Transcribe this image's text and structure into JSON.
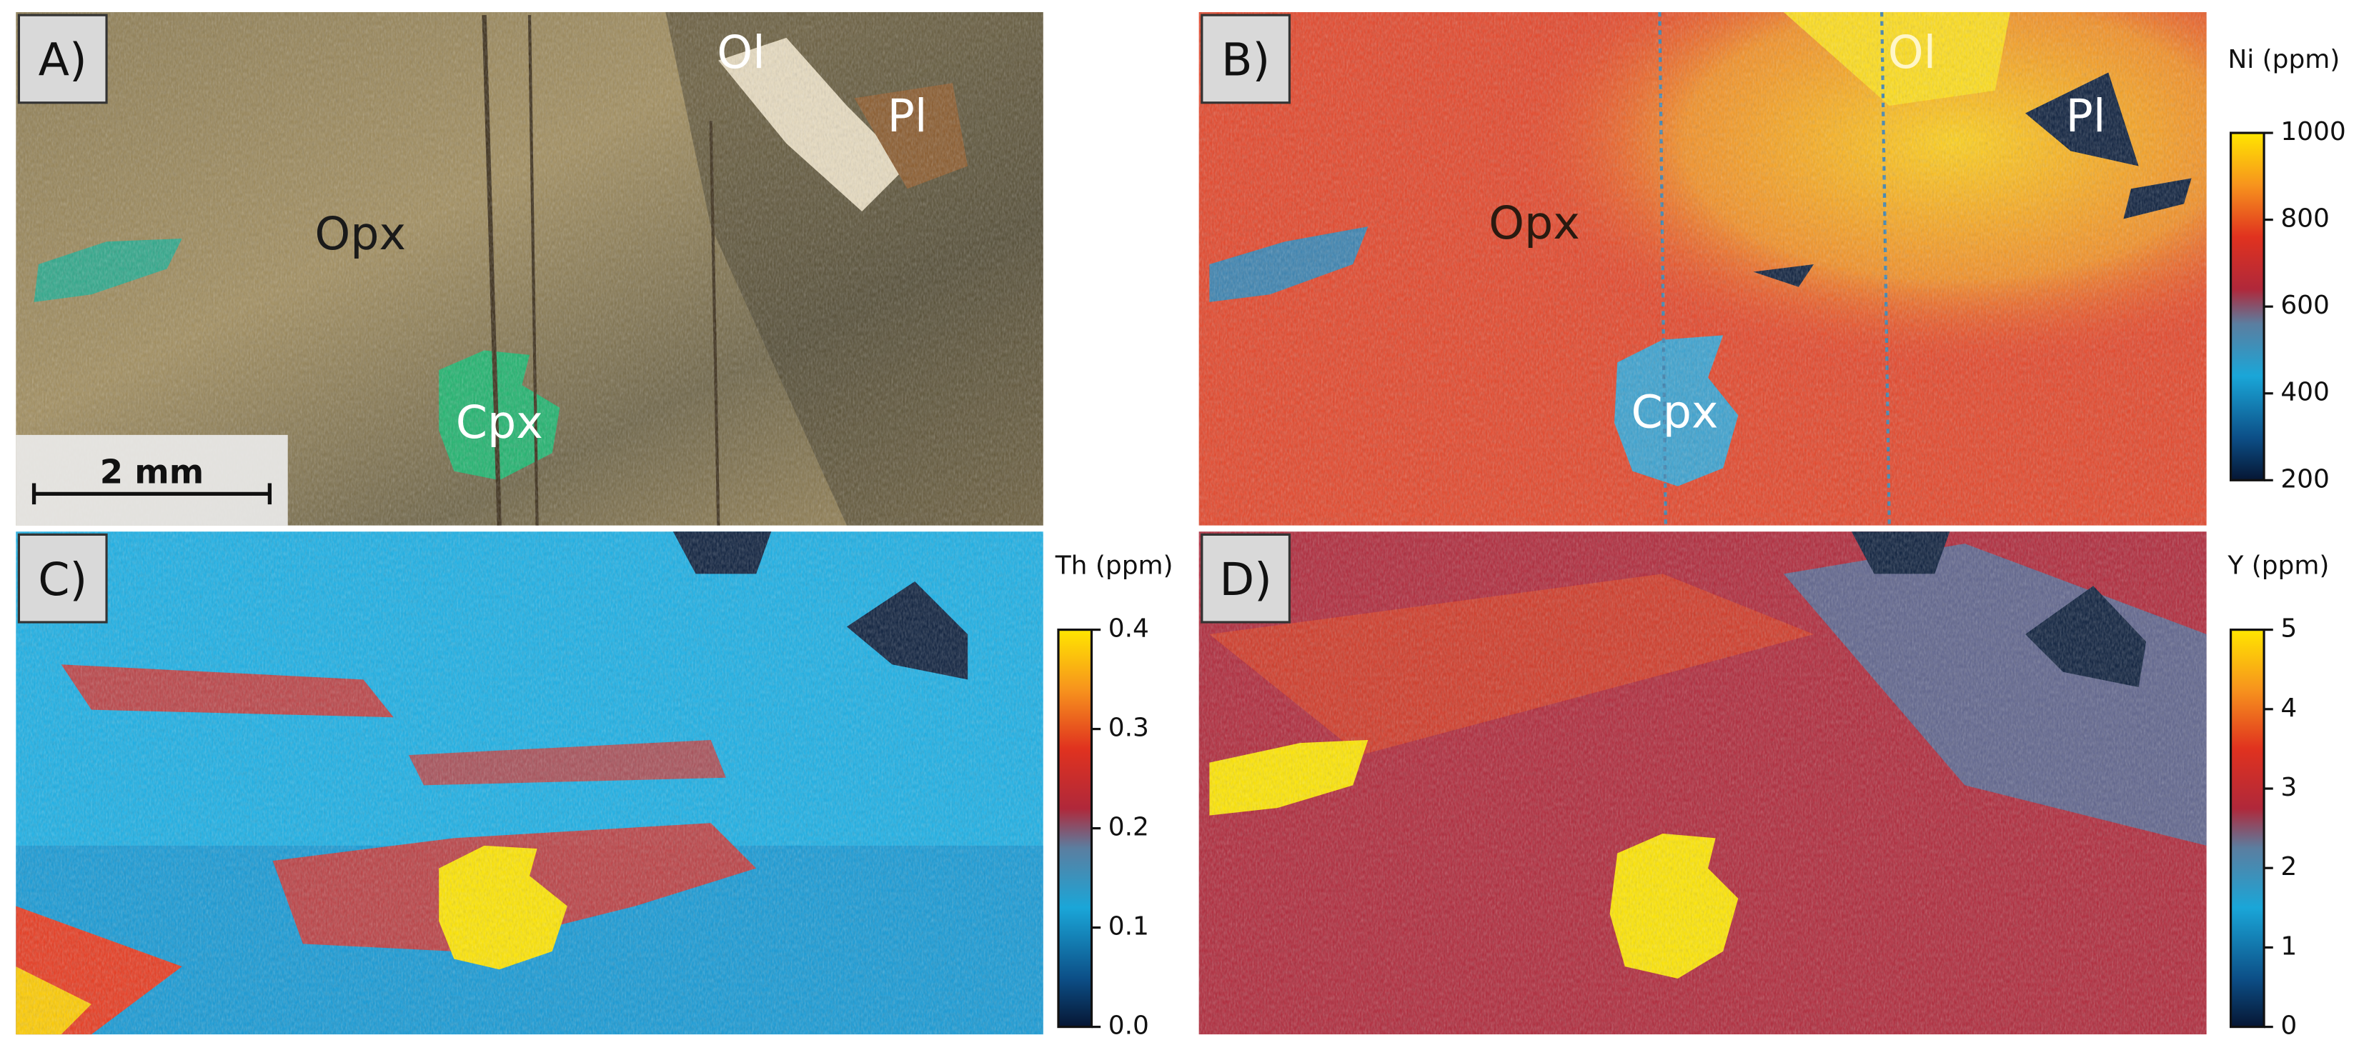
{
  "panels": [
    {
      "label": "A)",
      "annotations": [
        "Ol",
        "Pl",
        "Opx",
        "Cpx"
      ],
      "scale_bar": "2 mm"
    },
    {
      "label": "B)",
      "annotations": [
        "Ol",
        "Pl",
        "Opx",
        "Cpx"
      ],
      "colorbar": {
        "title": "Ni (ppm)",
        "lim": [
          200,
          1000
        ],
        "ticks": [
          200,
          400,
          600,
          800,
          1000
        ]
      }
    },
    {
      "label": "C)",
      "colorbar": {
        "title": "Th (ppm)",
        "lim": [
          0,
          0.4
        ],
        "ticks": [
          {
            "value": 0,
            "label": "0.0"
          },
          0.1,
          0.2,
          0.3,
          0.4
        ]
      }
    },
    {
      "label": "D)",
      "colorbar": {
        "title": "Y (ppm)",
        "lim": [
          0,
          5
        ],
        "ticks": [
          0,
          1,
          2,
          3,
          4,
          5
        ]
      }
    }
  ]
}
